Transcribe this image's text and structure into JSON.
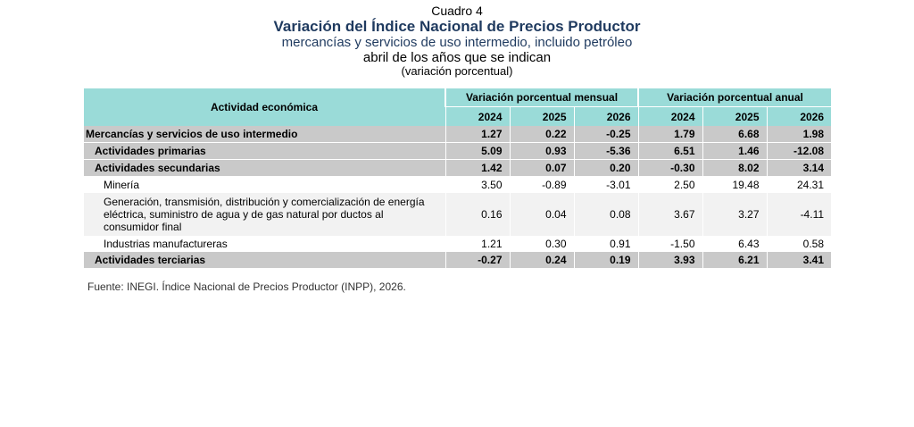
{
  "header": {
    "label": "Cuadro 4",
    "title": "Variación del Índice Nacional de Precios Productor",
    "subtitle": "mercancías y servicios de uso intermedio, incluido petróleo",
    "date": "abril de los años que se indican",
    "unit": "(variación porcentual)"
  },
  "table": {
    "activity_header": "Actividad económica",
    "group_monthly": "Variación porcentual mensual",
    "group_annual": "Variación porcentual anual",
    "years": [
      "2024",
      "2025",
      "2026",
      "2024",
      "2025",
      "2026"
    ],
    "rows": [
      {
        "name": "Mercancías y servicios de uso intermedio",
        "values": [
          "1.27",
          "0.22",
          "-0.25",
          "1.79",
          "6.68",
          "1.98"
        ]
      },
      {
        "name": "Actividades primarias",
        "values": [
          "5.09",
          "0.93",
          "-5.36",
          "6.51",
          "1.46",
          "-12.08"
        ]
      },
      {
        "name": "Actividades secundarias",
        "values": [
          "1.42",
          "0.07",
          "0.20",
          "-0.30",
          "8.02",
          "3.14"
        ]
      },
      {
        "name": "Minería",
        "values": [
          "3.50",
          "-0.89",
          "-3.01",
          "2.50",
          "19.48",
          "24.31"
        ]
      },
      {
        "name": "Generación, transmisión, distribución y comercialización de energía eléctrica, suministro de agua y de gas natural por ductos al consumidor final",
        "values": [
          "0.16",
          "0.04",
          "0.08",
          "3.67",
          "3.27",
          "-4.11"
        ]
      },
      {
        "name": "Industrias manufactureras",
        "values": [
          "1.21",
          "0.30",
          "0.91",
          "-1.50",
          "6.43",
          "0.58"
        ]
      },
      {
        "name": "Actividades terciarias",
        "values": [
          "-0.27",
          "0.24",
          "0.19",
          "3.93",
          "6.21",
          "3.41"
        ]
      }
    ]
  },
  "source": "Fuente: INEGI. Índice Nacional de Precios Productor (INPP), 2026."
}
